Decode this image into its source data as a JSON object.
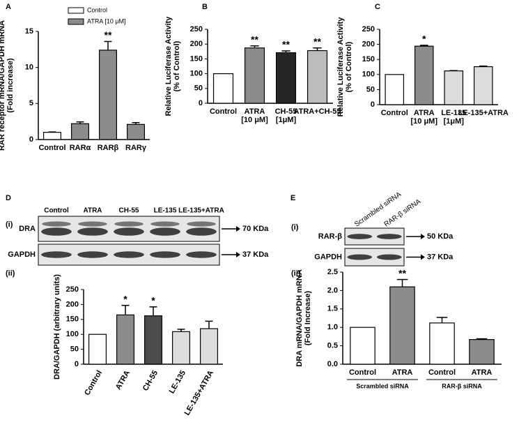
{
  "chart_data": [
    {
      "type": "bar",
      "panel": "A",
      "ylabel": [
        "RAR receptor mRNA/GAPDH mRNA",
        "(Fold increase)"
      ],
      "categories": [
        [
          "Control"
        ],
        [
          "RARα"
        ],
        [
          "RARβ"
        ],
        [
          "RARγ"
        ]
      ],
      "series": [
        {
          "name": "Control",
          "color": "#ffffff",
          "values": [
            1,
            null,
            null,
            null
          ],
          "errors": [
            0.05,
            null,
            null,
            null
          ]
        },
        {
          "name": "ATRA [10 μM]",
          "color": "#8c8c8c",
          "values": [
            null,
            2.2,
            12.4,
            2.1
          ],
          "errors": [
            null,
            0.25,
            1.2,
            0.25
          ]
        }
      ],
      "significance": [
        null,
        null,
        "**",
        null
      ],
      "ylim": [
        0,
        15
      ],
      "yticks": [
        0,
        5,
        10,
        15
      ],
      "legend": "top"
    },
    {
      "type": "bar",
      "panel": "B",
      "ylabel": [
        "Relative Luciferase Activity",
        "(% of Control)"
      ],
      "categories": [
        [
          "Control"
        ],
        [
          "ATRA",
          "[10 μM]"
        ],
        [
          "CH-55",
          "[1μM]"
        ],
        [
          "ATRA+CH-55"
        ]
      ],
      "values": [
        100,
        187,
        171,
        178
      ],
      "errors": [
        null,
        7,
        6,
        9
      ],
      "colors": [
        "#ffffff",
        "#8c8c8c",
        "#262626",
        "#bdbdbd"
      ],
      "significance": [
        null,
        "**",
        "**",
        "**"
      ],
      "ylim": [
        0,
        250
      ],
      "yticks": [
        0,
        50,
        100,
        150,
        200,
        250
      ]
    },
    {
      "type": "bar",
      "panel": "C",
      "ylabel": [
        "Relative Luciferase Activity",
        "(% of Control)"
      ],
      "categories": [
        [
          "Control"
        ],
        [
          "ATRA",
          "[10 μM]"
        ],
        [
          "LE-135",
          "[1μM]"
        ],
        [
          "LE-135+ATRA"
        ]
      ],
      "values": [
        100,
        194,
        112,
        126
      ],
      "errors": [
        null,
        3,
        1,
        2
      ],
      "colors": [
        "#ffffff",
        "#8c8c8c",
        "#dcdcdc",
        "#dcdcdc"
      ],
      "significance": [
        null,
        "*",
        null,
        null
      ],
      "ylim": [
        0,
        250
      ],
      "yticks": [
        0,
        50,
        100,
        150,
        200,
        250
      ]
    },
    {
      "type": "bar",
      "panel": "(ii)",
      "ylabel": [
        "DRA/GAPDH (arbitrary units)"
      ],
      "categories": [
        [
          "Control"
        ],
        [
          "ATRA"
        ],
        [
          "CH-55"
        ],
        [
          "LE-135"
        ],
        [
          "LE-135+ATRA"
        ]
      ],
      "values": [
        100,
        165,
        162,
        109,
        119
      ],
      "errors": [
        null,
        32,
        30,
        8,
        25
      ],
      "colors": [
        "#ffffff",
        "#8c8c8c",
        "#4d4d4d",
        "#dcdcdc",
        "#dcdcdc"
      ],
      "significance": [
        null,
        "*",
        "*",
        null,
        null
      ],
      "ylim": [
        0,
        250
      ],
      "yticks": [
        0,
        50,
        100,
        150,
        200,
        250
      ]
    },
    {
      "type": "bar",
      "panel": "(ii)",
      "ylabel": [
        "DRA mRNA/GAPDH mRNA",
        "(Fold Increase)"
      ],
      "categories": [
        [
          "Control"
        ],
        [
          "ATRA"
        ],
        [
          "Control"
        ],
        [
          "ATRA"
        ]
      ],
      "groups": [
        "Scrambled siRNA",
        "RAR-β siRNA"
      ],
      "values": [
        1.0,
        2.1,
        1.12,
        0.67
      ],
      "errors": [
        null,
        0.2,
        0.15,
        0.02
      ],
      "colors": [
        "#ffffff",
        "#8c8c8c",
        "#ffffff",
        "#8c8c8c"
      ],
      "significance": [
        null,
        "**",
        null,
        null
      ],
      "ylim": [
        0,
        2.5
      ],
      "yticks": [
        {
          "value": 0,
          "label": "0.0"
        },
        0.5,
        {
          "value": 1,
          "label": "1.0"
        },
        1.5,
        {
          "value": 2,
          "label": "2.0"
        },
        2.5
      ]
    }
  ],
  "blots": [
    {
      "panel": "D",
      "label": "(i)",
      "lanes": [
        "Control",
        "ATRA",
        "CH-55",
        "LE-135",
        "LE-135+ATRA"
      ],
      "rows": [
        {
          "label": "DRA",
          "size": "70 KDa"
        },
        {
          "label": "GAPDH",
          "size": "37 KDa"
        }
      ]
    },
    {
      "panel": "E",
      "label": "(i)",
      "lanes": [
        "Scrambled siRNA",
        "RAR-β siRNA"
      ],
      "rows": [
        {
          "label": "RAR-β",
          "size": "50 KDa"
        },
        {
          "label": "GAPDH",
          "size": "37 KDa"
        }
      ]
    }
  ]
}
